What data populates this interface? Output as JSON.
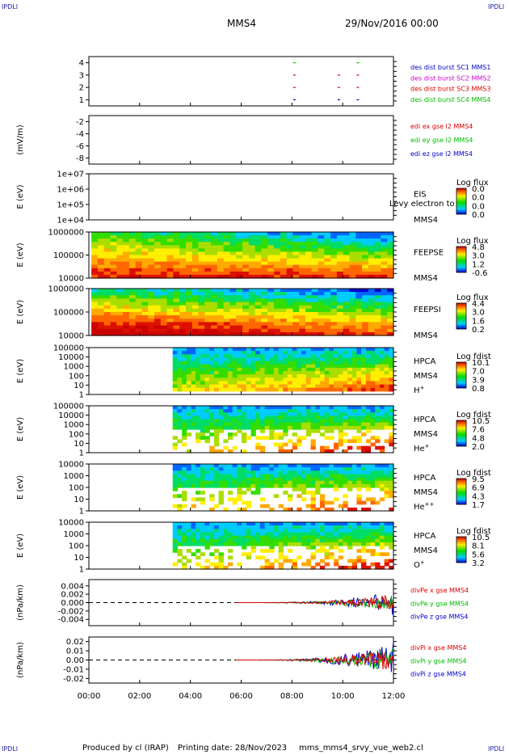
{
  "header": {
    "corner_label": "IPDLI",
    "spacecraft": "MMS4",
    "datetime": "29/Nov/2016 00:00"
  },
  "footer": {
    "produced_by": "Produced by cl (IRAP)",
    "printing_date": "Printing date: 28/Nov/2023",
    "script_name": "mms_mms4_srvy_vue_web2.cl"
  },
  "chart_data": {
    "type": "stacked time-series panels",
    "x": {
      "ticks": [
        "00:00",
        "02:00",
        "04:00",
        "06:00",
        "08:00",
        "10:00",
        "12:00"
      ],
      "range_hours": [
        0,
        12
      ]
    },
    "panels": [
      {
        "id": "dist",
        "type": "line",
        "ylabel": "",
        "y_ticks": [
          "4",
          "3",
          "2",
          "1"
        ],
        "y_values": [
          4,
          3,
          2,
          1
        ],
        "y_range": [
          0.5,
          4.5
        ],
        "legend": [
          {
            "label": "des dist burst SC1 MMS1",
            "color": "#0000cc"
          },
          {
            "label": "des dist burst SC2 MMS2",
            "color": "#cc00cc"
          },
          {
            "label": "des dist burst SC3 MMS3",
            "color": "#dd0000"
          },
          {
            "label": "des dist burst SC4 MMS4",
            "color": "#00bb00"
          }
        ],
        "marks": [
          {
            "t": 8.05,
            "y": 4,
            "color": "#00bb00"
          },
          {
            "t": 10.55,
            "y": 4,
            "color": "#00bb00"
          },
          {
            "t": 8.05,
            "y": 3,
            "color": "#dd0000"
          },
          {
            "t": 9.8,
            "y": 3,
            "color": "#dd0000"
          },
          {
            "t": 10.55,
            "y": 3,
            "color": "#dd0000"
          },
          {
            "t": 8.05,
            "y": 2,
            "color": "#dd0000"
          },
          {
            "t": 9.8,
            "y": 2,
            "color": "#dd0000"
          },
          {
            "t": 10.55,
            "y": 2,
            "color": "#dd0000"
          },
          {
            "t": 8.05,
            "y": 1,
            "color": "#0000cc"
          },
          {
            "t": 9.8,
            "y": 1,
            "color": "#0000cc"
          },
          {
            "t": 10.55,
            "y": 1,
            "color": "#0000cc"
          }
        ]
      },
      {
        "id": "edi",
        "type": "line",
        "ylabel": "(mV/m)",
        "y_ticks": [
          "-2",
          "-4",
          "-6",
          "-8"
        ],
        "y_values": [
          -2,
          -4,
          -6,
          -8
        ],
        "y_range": [
          -9,
          -1
        ],
        "legend": [
          {
            "label": "edi ex gse l2 MMS4",
            "color": "#dd0000"
          },
          {
            "label": "edi ey gse l2 MMS4",
            "color": "#00bb00"
          },
          {
            "label": "edi ez gse l2 MMS4",
            "color": "#0000cc"
          }
        ]
      },
      {
        "id": "eis",
        "type": "heatmap",
        "ylabel": "E (eV)",
        "y_ticks": [
          "1e+07",
          "1e+06",
          "1e+05",
          "1e+04"
        ],
        "y_values": [
          10000000,
          1000000,
          100000,
          10000
        ],
        "y_log": true,
        "y_range": [
          10000,
          10000000
        ],
        "side_labels": [
          "EIS",
          "MMS4"
        ],
        "overlay_text": "Levy electron to",
        "colorbar": {
          "title": "Log flux",
          "ticks": [
            "0.0",
            "0.0",
            "0.0",
            "0.0"
          ]
        }
      },
      {
        "id": "feepse",
        "type": "heatmap",
        "ylabel": "E (eV)",
        "y_ticks": [
          "1000000",
          "100000",
          "10000"
        ],
        "y_values": [
          1000000,
          100000,
          10000
        ],
        "y_log": true,
        "y_range": [
          10000,
          1000000
        ],
        "side_labels": [
          "FEEPSE",
          "MMS4"
        ],
        "colorbar": {
          "title": "Log flux",
          "ticks": [
            "4.8",
            "3.0",
            "1.2",
            "-0.6"
          ]
        },
        "data_start_hours": 0.1
      },
      {
        "id": "feepsi",
        "type": "heatmap",
        "ylabel": "E (eV)",
        "y_ticks": [
          "1000000",
          "100000",
          "10000"
        ],
        "y_values": [
          1000000,
          100000,
          10000
        ],
        "y_log": true,
        "y_range": [
          10000,
          1000000
        ],
        "side_labels": [
          "FEEPSI",
          "MMS4"
        ],
        "colorbar": {
          "title": "Log flux",
          "ticks": [
            "4.4",
            "3.0",
            "1.6",
            "0.2"
          ]
        },
        "data_start_hours": 0.1
      },
      {
        "id": "hpca_h",
        "type": "heatmap",
        "ylabel": "E (eV)",
        "y_ticks": [
          "100000",
          "10000",
          "1000",
          "100",
          "10",
          "1"
        ],
        "y_values": [
          100000,
          10000,
          1000,
          100,
          10,
          1
        ],
        "y_log": true,
        "y_range": [
          1,
          100000
        ],
        "side_labels": [
          "HPCA",
          "MMS4",
          "H+"
        ],
        "colorbar": {
          "title": "Log fdist",
          "ticks": [
            "10.1",
            "7.0",
            "3.9",
            "0.8"
          ]
        },
        "data_start_hours": 3.3
      },
      {
        "id": "hpca_he",
        "type": "heatmap",
        "ylabel": "E (eV)",
        "y_ticks": [
          "100000",
          "10000",
          "1000",
          "100",
          "10",
          "1"
        ],
        "y_values": [
          100000,
          10000,
          1000,
          100,
          10,
          1
        ],
        "y_log": true,
        "y_range": [
          1,
          100000
        ],
        "side_labels": [
          "HPCA",
          "MMS4",
          "He+"
        ],
        "colorbar": {
          "title": "Log fdist",
          "ticks": [
            "10.5",
            "7.6",
            "4.8",
            "2.0"
          ]
        },
        "data_start_hours": 3.3
      },
      {
        "id": "hpca_hepp",
        "type": "heatmap",
        "ylabel": "E (eV)",
        "y_ticks": [
          "10000",
          "1000",
          "100",
          "10",
          "1"
        ],
        "y_values": [
          10000,
          1000,
          100,
          10,
          1
        ],
        "y_log": true,
        "y_range": [
          1,
          10000
        ],
        "side_labels": [
          "HPCA",
          "MMS4",
          "He++"
        ],
        "colorbar": {
          "title": "Log fdist",
          "ticks": [
            "9.5",
            "6.9",
            "4.3",
            "1.7"
          ]
        },
        "data_start_hours": 3.3
      },
      {
        "id": "hpca_o",
        "type": "heatmap",
        "ylabel": "E (eV)",
        "y_ticks": [
          "10000",
          "1000",
          "100",
          "10",
          "1"
        ],
        "y_values": [
          10000,
          1000,
          100,
          10,
          1
        ],
        "y_log": true,
        "y_range": [
          1,
          10000
        ],
        "side_labels": [
          "HPCA",
          "MMS4",
          "O+"
        ],
        "colorbar": {
          "title": "Log fdist",
          "ticks": [
            "10.5",
            "8.1",
            "5.6",
            "3.2"
          ]
        },
        "data_start_hours": 3.3
      },
      {
        "id": "divpe",
        "type": "line",
        "ylabel": "(nPa/km)",
        "y_ticks": [
          "0.004",
          "0.002",
          "0.000",
          "-0.002",
          "-0.004"
        ],
        "y_values": [
          0.004,
          0.002,
          0,
          -0.002,
          -0.004
        ],
        "y_range": [
          -0.0055,
          0.0055
        ],
        "legend": [
          {
            "label": "divPe x gse MMS4",
            "color": "#dd0000"
          },
          {
            "label": "divPe y gse MMS4",
            "color": "#00bb00"
          },
          {
            "label": "divPe z gse MMS4",
            "color": "#0000cc"
          }
        ],
        "data_start_hours": 5.8
      },
      {
        "id": "divpi",
        "type": "line",
        "ylabel": "(nPa/km)",
        "y_ticks": [
          "0.02",
          "0.01",
          "0.00",
          "-0.01",
          "-0.02"
        ],
        "y_values": [
          0.02,
          0.01,
          0,
          -0.01,
          -0.02
        ],
        "y_range": [
          -0.025,
          0.025
        ],
        "legend": [
          {
            "label": "divPi x gse MMS4",
            "color": "#dd0000"
          },
          {
            "label": "divPi y gse MMS4",
            "color": "#00bb00"
          },
          {
            "label": "divPi z gse MMS4",
            "color": "#0000cc"
          }
        ],
        "data_start_hours": 5.8
      }
    ]
  }
}
